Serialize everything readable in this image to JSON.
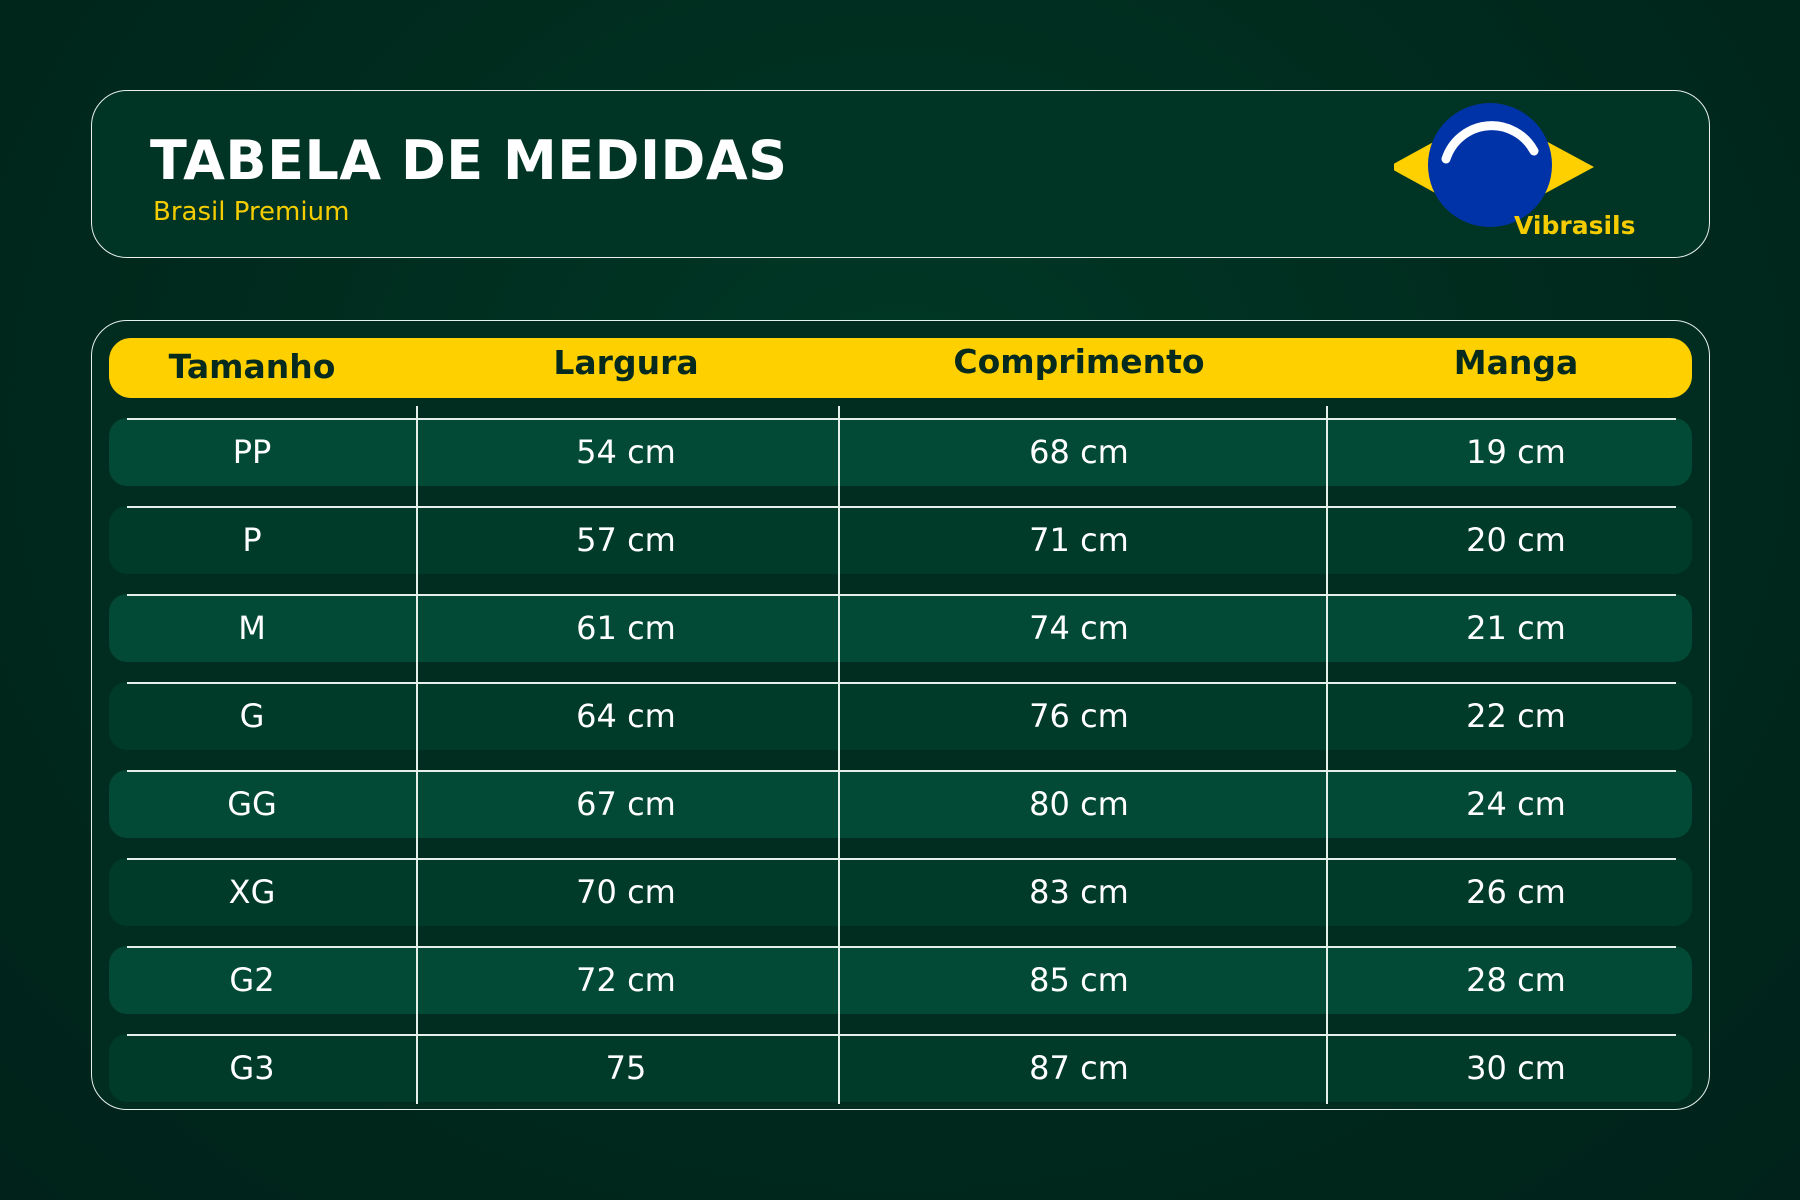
{
  "header": {
    "title": "TABELA DE MEDIDAS",
    "subtitle": "Brasil Premium",
    "brand": "Vibrasils"
  },
  "colors": {
    "background": "#002a1d",
    "card": "#003525",
    "accent_yellow": "#ffd000",
    "flag_green": "#009c3b",
    "flag_blue": "#0033a8",
    "row_light": "#024a35",
    "row_dark": "#003a29"
  },
  "table": {
    "columns": [
      "Tamanho",
      "Largura",
      "Comprimento",
      "Manga"
    ],
    "rows": [
      [
        "PP",
        "54 cm",
        "68 cm",
        "19 cm"
      ],
      [
        "P",
        "57 cm",
        "71 cm",
        "20 cm"
      ],
      [
        "M",
        "61 cm",
        "74 cm",
        "21 cm"
      ],
      [
        "G",
        "64 cm",
        "76 cm",
        "22 cm"
      ],
      [
        "GG",
        "67 cm",
        "80 cm",
        "24 cm"
      ],
      [
        "XG",
        "70 cm",
        "83 cm",
        "26 cm"
      ],
      [
        "G2",
        "72 cm",
        "85 cm",
        "28 cm"
      ],
      [
        "G3",
        "75",
        "87 cm",
        "30 cm"
      ]
    ]
  }
}
